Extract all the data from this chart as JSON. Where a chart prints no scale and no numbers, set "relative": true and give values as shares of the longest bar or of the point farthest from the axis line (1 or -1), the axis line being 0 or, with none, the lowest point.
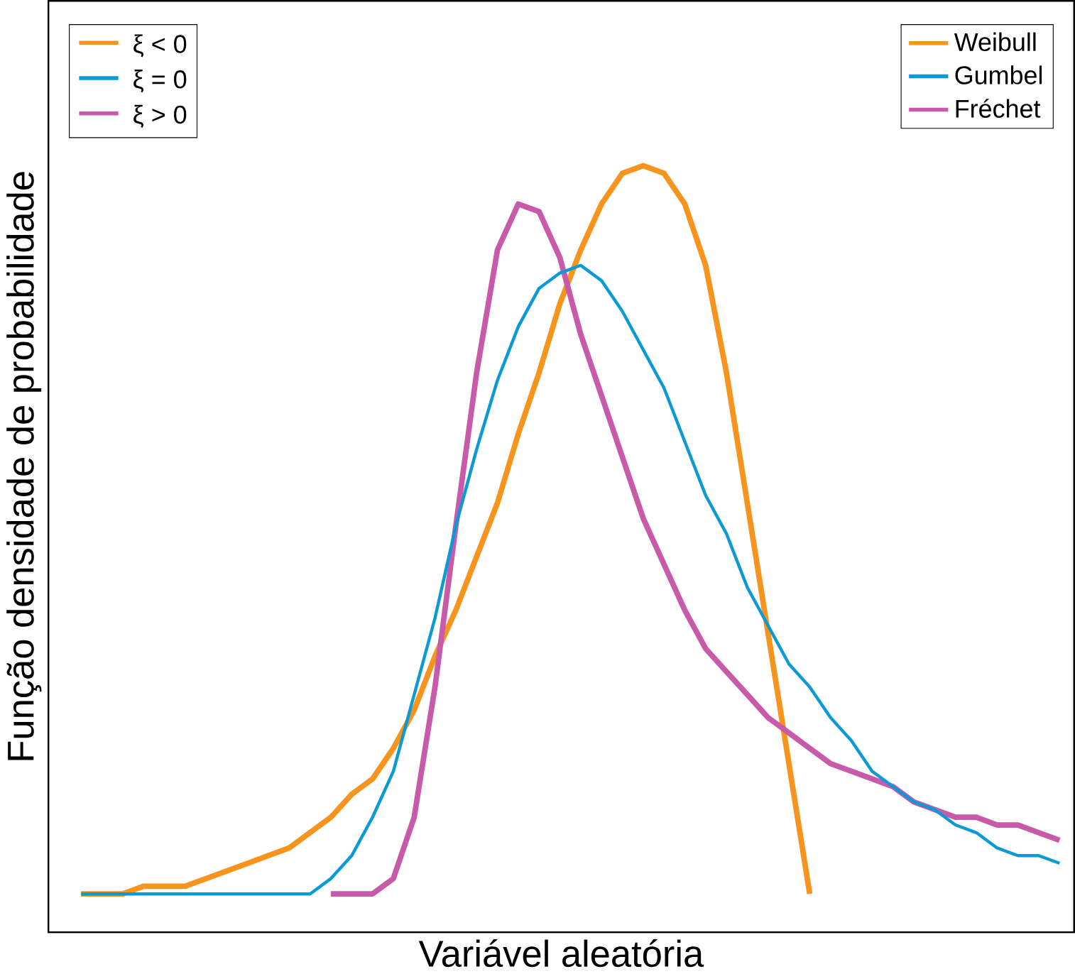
{
  "chart_data": {
    "type": "line",
    "relative": true,
    "xlabel": "Variável aleatória",
    "ylabel": "Função densidade de probabilidade",
    "categories": [
      null,
      null,
      null,
      null,
      null,
      null,
      null,
      null,
      null,
      null,
      null,
      null,
      null,
      null,
      null,
      null,
      null,
      null,
      null,
      null,
      null,
      null,
      null,
      null,
      null,
      null,
      null,
      null,
      null,
      null,
      null,
      null,
      null,
      null,
      null,
      null,
      null,
      null,
      null,
      null,
      null,
      null,
      null,
      null,
      null,
      null,
      null,
      null
    ],
    "series": [
      {
        "name": "Weibull",
        "color": "#f7941d",
        "values": [
          0.05,
          0.05,
          0.05,
          0.06,
          0.06,
          0.06,
          0.07,
          0.08,
          0.09,
          0.1,
          0.11,
          0.13,
          0.15,
          0.18,
          0.2,
          0.24,
          0.29,
          0.36,
          0.42,
          0.49,
          0.56,
          0.65,
          0.73,
          0.82,
          0.89,
          0.95,
          0.99,
          1,
          0.99,
          0.95,
          0.87,
          0.73,
          0.56,
          0.39,
          0.22,
          0.05,
          null,
          null,
          null,
          null,
          null,
          null,
          null,
          null,
          null,
          null,
          null,
          null
        ]
      },
      {
        "name": "Gumbel",
        "color": "#0b9ad6",
        "values": [
          0.05,
          0.05,
          0.05,
          0.05,
          0.05,
          0.05,
          0.05,
          0.05,
          0.05,
          0.05,
          0.05,
          0.05,
          0.07,
          0.1,
          0.15,
          0.21,
          0.31,
          0.41,
          0.53,
          0.63,
          0.72,
          0.79,
          0.84,
          0.86,
          0.87,
          0.85,
          0.81,
          0.76,
          0.71,
          0.64,
          0.57,
          0.52,
          0.45,
          0.4,
          0.35,
          0.32,
          0.28,
          0.25,
          0.21,
          0.19,
          0.17,
          0.16,
          0.14,
          0.13,
          0.11,
          0.1,
          0.1,
          0.09
        ]
      },
      {
        "name": "Fréchet",
        "color": "#c85aaa",
        "values": [
          null,
          null,
          null,
          null,
          null,
          null,
          null,
          null,
          null,
          null,
          null,
          null,
          0.05,
          0.05,
          0.05,
          0.07,
          0.15,
          0.32,
          0.53,
          0.73,
          0.89,
          0.95,
          0.94,
          0.88,
          0.78,
          0.7,
          0.62,
          0.54,
          0.48,
          0.42,
          0.37,
          0.34,
          0.31,
          0.28,
          0.26,
          0.24,
          0.22,
          0.21,
          0.2,
          0.19,
          0.17,
          0.16,
          0.15,
          0.15,
          0.14,
          0.14,
          0.13,
          0.12
        ]
      }
    ],
    "annotations": [
      "ξ < 0",
      "ξ = 0",
      "ξ > 0"
    ],
    "legend": "top right",
    "line_style": "solid",
    "marker": "none"
  }
}
